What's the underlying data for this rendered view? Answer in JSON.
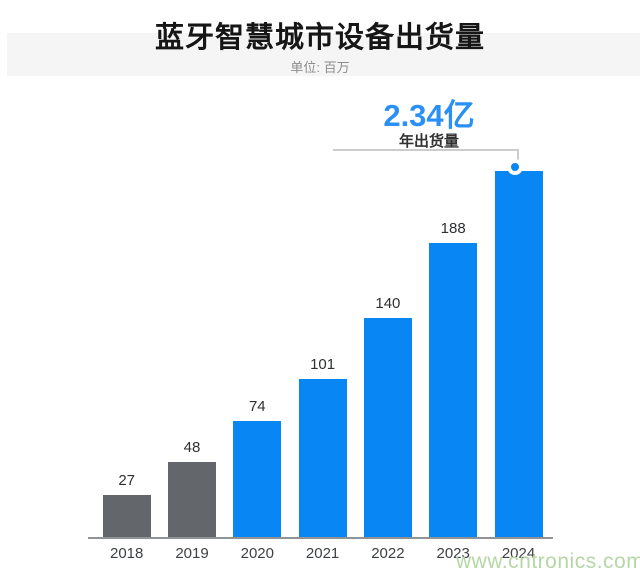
{
  "header": {
    "title": "蓝牙智慧城市设备出货量",
    "subtitle": "单位: 百万"
  },
  "annotation": {
    "highlight_value": "2.34亿",
    "label": "年出货量"
  },
  "watermark": {
    "text": "www.cntronics.com",
    "color": "#b5d7a6"
  },
  "colors": {
    "bar_blue": "#0886f4",
    "bar_gray": "#63666a",
    "highlight_text": "#2b90f5",
    "axis_line": "#909396",
    "bracket_line": "#cccccc",
    "band_background": "#f5f5f6",
    "value_label": "#2d2f31",
    "axis_label": "#3e4144",
    "subtitle_gray": "#8c8c8c"
  },
  "chart_data": {
    "type": "bar",
    "title": "蓝牙智慧城市设备出货量",
    "unit_note": "单位: 百万",
    "categories": [
      "2018",
      "2019",
      "2020",
      "2021",
      "2022",
      "2023",
      "2024"
    ],
    "values": [
      27,
      48,
      74,
      101,
      140,
      188,
      234
    ],
    "value_labels": [
      "27",
      "48",
      "74",
      "101",
      "140",
      "188",
      ""
    ],
    "bar_color_keys": [
      "gray",
      "gray",
      "blue",
      "blue",
      "blue",
      "blue",
      "blue"
    ],
    "highlight": {
      "index": 6,
      "value": 234,
      "display": "2.34亿",
      "note": "年出货量"
    },
    "xlabel": "",
    "ylabel": "",
    "ylim": [
      0,
      250
    ],
    "grid": false,
    "legend": "none"
  }
}
